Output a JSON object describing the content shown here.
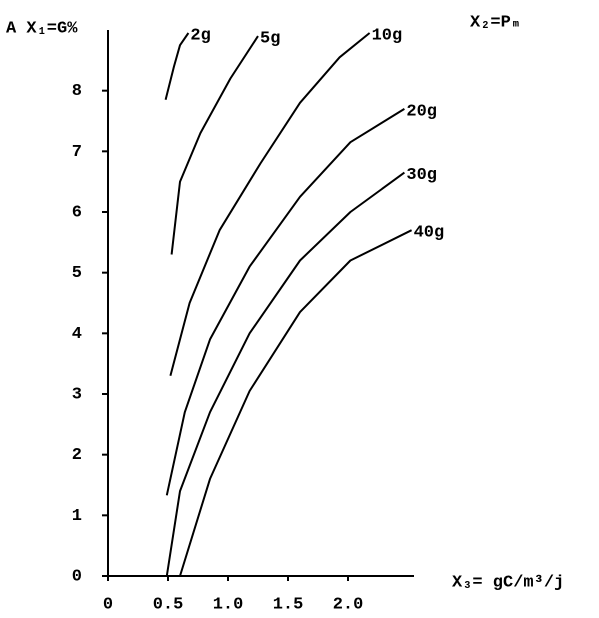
{
  "chart_data": {
    "type": "line",
    "y_label": "A X₁=G%",
    "legend_title": "X₂=Pₘ",
    "x_label": "X₃= gC/m³/j",
    "xlim": [
      0,
      2.55
    ],
    "ylim": [
      0,
      9
    ],
    "xticks": [
      0,
      0.5,
      {
        "value": 1,
        "label": "1.0"
      },
      1.5,
      {
        "value": 2,
        "label": "2.0"
      }
    ],
    "yticks": [
      0,
      1,
      2,
      3,
      4,
      5,
      6,
      7,
      8
    ],
    "series": [
      {
        "name": "2g",
        "color": "#000000",
        "x": [
          0.48,
          0.55,
          0.6,
          0.67
        ],
        "values": [
          7.85,
          8.4,
          8.75,
          8.95
        ]
      },
      {
        "name": "5g",
        "color": "#000000",
        "x": [
          0.53,
          0.6,
          0.77,
          1.02,
          1.25
        ],
        "values": [
          5.3,
          6.5,
          7.3,
          8.2,
          8.9
        ]
      },
      {
        "name": "10g",
        "color": "#000000",
        "x": [
          0.52,
          0.68,
          0.93,
          1.27,
          1.6,
          1.93,
          2.18
        ],
        "values": [
          3.3,
          4.5,
          5.7,
          6.8,
          7.8,
          8.55,
          8.95
        ]
      },
      {
        "name": "20g",
        "color": "#000000",
        "x": [
          0.49,
          0.64,
          0.85,
          1.18,
          1.6,
          2.02,
          2.47
        ],
        "values": [
          1.33,
          2.7,
          3.9,
          5.1,
          6.25,
          7.15,
          7.7
        ]
      },
      {
        "name": "30g",
        "color": "#000000",
        "x": [
          0.49,
          0.6,
          0.85,
          1.18,
          1.6,
          2.02,
          2.47
        ],
        "values": [
          0,
          1.4,
          2.7,
          4.0,
          5.2,
          6.0,
          6.65
        ]
      },
      {
        "name": "40g",
        "color": "#000000",
        "x": [
          0.6,
          0.85,
          1.18,
          1.6,
          2.02,
          2.53
        ],
        "values": [
          0,
          1.6,
          3.05,
          4.35,
          5.2,
          5.7
        ]
      }
    ]
  }
}
